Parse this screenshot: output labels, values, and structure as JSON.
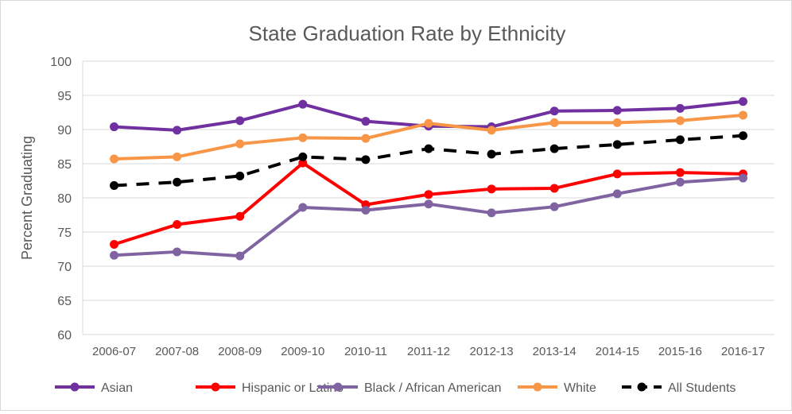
{
  "chart_data": {
    "type": "line",
    "title": "State Graduation Rate by Ethnicity",
    "xlabel": "",
    "ylabel": "Percent Graduating",
    "ylim": [
      60,
      100
    ],
    "yticks": [
      60,
      65,
      70,
      75,
      80,
      85,
      90,
      95,
      100
    ],
    "grid": true,
    "legend_position": "bottom",
    "categories": [
      "2006-07",
      "2007-08",
      "2008-09",
      "2009-10",
      "2010-11",
      "2011-12",
      "2012-13",
      "2013-14",
      "2014-15",
      "2015-16",
      "2016-17"
    ],
    "series": [
      {
        "name": "Asian",
        "color": "#7030A0",
        "dashed": false,
        "values": [
          90.4,
          89.9,
          91.3,
          93.7,
          91.2,
          90.5,
          90.4,
          92.7,
          92.8,
          93.1,
          94.1
        ]
      },
      {
        "name": "Hispanic or Latino",
        "color": "#FF0000",
        "dashed": false,
        "values": [
          73.2,
          76.1,
          77.3,
          85.1,
          79.0,
          80.5,
          81.3,
          81.4,
          83.5,
          83.7,
          83.5
        ]
      },
      {
        "name": "Black / African American",
        "color": "#8064A2",
        "dashed": false,
        "values": [
          71.6,
          72.1,
          71.5,
          78.6,
          78.2,
          79.1,
          77.8,
          78.7,
          80.6,
          82.3,
          82.9
        ]
      },
      {
        "name": "White",
        "color": "#F79646",
        "dashed": false,
        "values": [
          85.7,
          86.0,
          87.9,
          88.8,
          88.7,
          90.9,
          89.9,
          91.0,
          91.0,
          91.3,
          92.1
        ]
      },
      {
        "name": "All Students",
        "color": "#000000",
        "dashed": true,
        "values": [
          81.8,
          82.3,
          83.2,
          86.0,
          85.6,
          87.2,
          86.4,
          87.2,
          87.8,
          88.5,
          89.1
        ]
      }
    ]
  }
}
